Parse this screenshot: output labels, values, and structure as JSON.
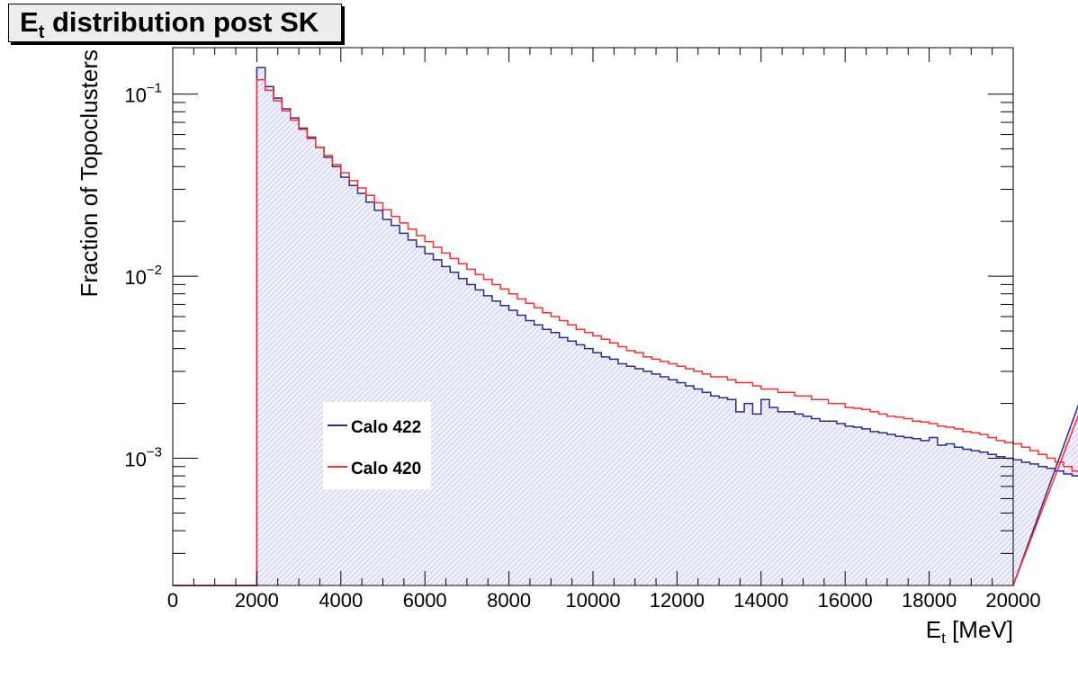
{
  "title": {
    "main": "E",
    "sub": "t",
    "rest": " distribution post SK"
  },
  "y_axis": {
    "label": "Fraction of Topoclusters"
  },
  "x_axis": {
    "label_main": "E",
    "label_sub": "t",
    "label_rest": " [MeV]"
  },
  "colors": {
    "calo422": "#2b2b8f",
    "calo420": "#ff2a2a",
    "fill": "#dcdcf7"
  },
  "chart_data": {
    "type": "line",
    "title": "Et distribution post SK",
    "xlabel": "Et [MeV]",
    "ylabel": "Fraction of Topoclusters",
    "xlim": [
      0,
      20000
    ],
    "ylim": [
      0.0002,
      0.18
    ],
    "yscale": "log",
    "bin_width": 200,
    "x_ticks": [
      "0",
      "2000",
      "4000",
      "6000",
      "8000",
      "10000",
      "12000",
      "14000",
      "16000",
      "18000",
      "20000"
    ],
    "y_ticks": [
      {
        "base": "10",
        "exp": "−1",
        "value": 0.1
      },
      {
        "base": "10",
        "exp": "−2",
        "value": 0.01
      },
      {
        "base": "10",
        "exp": "−3",
        "value": 0.001
      }
    ],
    "legend": {
      "position": "center-left"
    },
    "series": [
      {
        "name": "Calo 422",
        "x_start": 2000,
        "values": [
          0.14,
          0.11,
          0.095,
          0.083,
          0.074,
          0.065,
          0.058,
          0.051,
          0.045,
          0.04,
          0.035,
          0.0315,
          0.0285,
          0.0255,
          0.023,
          0.0205,
          0.019,
          0.0172,
          0.0158,
          0.0145,
          0.0133,
          0.0123,
          0.0113,
          0.0105,
          0.0097,
          0.009,
          0.0084,
          0.0078,
          0.0073,
          0.0069,
          0.0065,
          0.0061,
          0.0057,
          0.0054,
          0.0051,
          0.0049,
          0.0046,
          0.0044,
          0.0042,
          0.004,
          0.0038,
          0.0036,
          0.0035,
          0.0033,
          0.0032,
          0.0031,
          0.003,
          0.0029,
          0.0028,
          0.0027,
          0.0026,
          0.0025,
          0.0024,
          0.0023,
          0.0022,
          0.00215,
          0.0021,
          0.0018,
          0.002,
          0.00175,
          0.0021,
          0.0019,
          0.0018,
          0.0018,
          0.00175,
          0.0017,
          0.00165,
          0.0016,
          0.0016,
          0.00155,
          0.0015,
          0.00148,
          0.00145,
          0.0014,
          0.00138,
          0.00135,
          0.00132,
          0.0013,
          0.00128,
          0.00125,
          0.0013,
          0.00118,
          0.0012,
          0.00115,
          0.00112,
          0.0011,
          0.00108,
          0.00105,
          0.00102,
          0.001,
          0.00098,
          0.00095,
          0.00093,
          0.0009,
          0.00088,
          0.00085,
          0.00082,
          0.0008,
          0.00078,
          0.0038
        ]
      },
      {
        "name": "Calo 420",
        "x_start": 2000,
        "values": [
          0.12,
          0.105,
          0.092,
          0.081,
          0.072,
          0.064,
          0.057,
          0.051,
          0.046,
          0.041,
          0.037,
          0.0335,
          0.0305,
          0.0278,
          0.0253,
          0.0232,
          0.0213,
          0.0196,
          0.0181,
          0.0167,
          0.0155,
          0.0144,
          0.0134,
          0.0125,
          0.0117,
          0.0109,
          0.0102,
          0.0096,
          0.009,
          0.0085,
          0.008,
          0.0075,
          0.0071,
          0.0067,
          0.0063,
          0.006,
          0.0057,
          0.0054,
          0.0051,
          0.0049,
          0.0047,
          0.0045,
          0.0043,
          0.0041,
          0.0039,
          0.0038,
          0.0036,
          0.0035,
          0.0034,
          0.0033,
          0.0032,
          0.0031,
          0.003,
          0.0029,
          0.0028,
          0.0028,
          0.0027,
          0.0026,
          0.0026,
          0.0025,
          0.0024,
          0.0024,
          0.0023,
          0.0023,
          0.0022,
          0.0022,
          0.0021,
          0.0021,
          0.002,
          0.002,
          0.0019,
          0.00188,
          0.00185,
          0.0018,
          0.00175,
          0.0017,
          0.00168,
          0.00165,
          0.0016,
          0.00158,
          0.00155,
          0.0015,
          0.00148,
          0.00145,
          0.0014,
          0.00138,
          0.00135,
          0.0013,
          0.00125,
          0.00122,
          0.0012,
          0.00115,
          0.0011,
          0.00105,
          0.001,
          0.00095,
          0.0009,
          0.00085,
          0.0008,
          0.0032
        ]
      }
    ]
  }
}
